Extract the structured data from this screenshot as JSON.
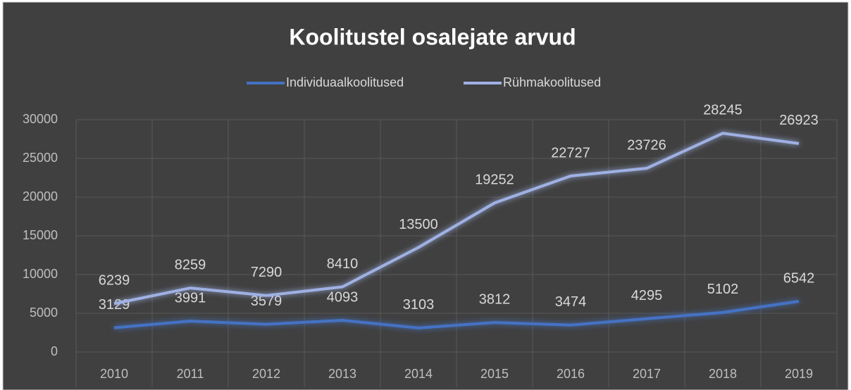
{
  "chart_data": {
    "type": "line",
    "title": "Koolitustel osalejate arvud",
    "categories": [
      "2010",
      "2011",
      "2012",
      "2013",
      "2014",
      "2015",
      "2016",
      "2017",
      "2018",
      "2019"
    ],
    "series": [
      {
        "name": "Individuaalkoolitused",
        "color": "#4472c4",
        "values": [
          3129,
          3991,
          3579,
          4093,
          3103,
          3812,
          3474,
          4295,
          5102,
          6542
        ]
      },
      {
        "name": "Rühmakoolitused",
        "color": "#9fb1e3",
        "values": [
          6239,
          8259,
          7290,
          8410,
          13500,
          19252,
          22727,
          23726,
          28245,
          26923
        ]
      }
    ],
    "ylim": [
      0,
      30000
    ],
    "yticks": [
      0,
      5000,
      10000,
      15000,
      20000,
      25000,
      30000
    ],
    "grid": true
  }
}
